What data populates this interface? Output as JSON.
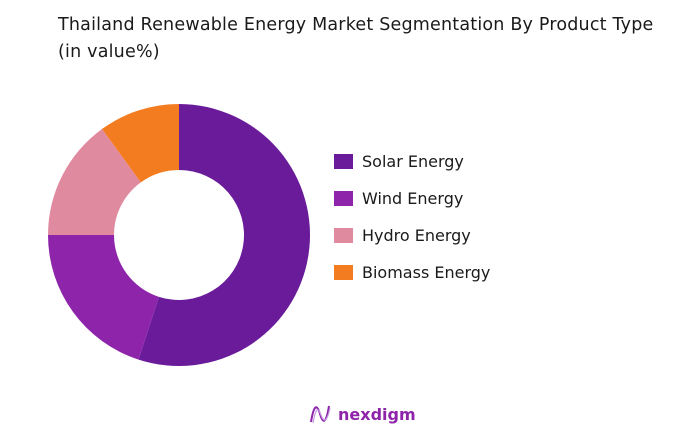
{
  "chart_data": {
    "type": "pie",
    "donut": true,
    "title": "Thailand Renewable Energy  Market Segmentation By Product Type (in value%)",
    "categories": [
      "Solar Energy",
      "Wind Energy",
      "Hydro Energy",
      "Biomass Energy"
    ],
    "values": [
      55,
      20,
      15,
      10
    ],
    "colors": [
      "#6a1b9a",
      "#8e24aa",
      "#e08aa0",
      "#f47c20"
    ],
    "legend_position": "right"
  },
  "logo": {
    "text": "nexdigm"
  }
}
